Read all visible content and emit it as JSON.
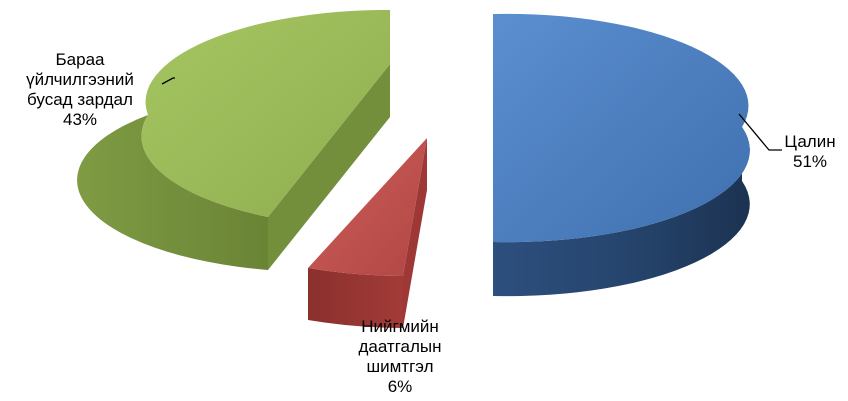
{
  "chart_data": {
    "type": "pie",
    "style": "3d-exploded",
    "slices": [
      {
        "name": "Цалин",
        "value": 51,
        "label": "51%",
        "color": "#4F81BD"
      },
      {
        "name": "Нийгмийн даатгалын шимтгэл",
        "value": 6,
        "label": "6%",
        "color": "#C0504D"
      },
      {
        "name": "Бараа үйлчилгээний бусад зардал",
        "value": 43,
        "label": "43%",
        "color": "#9BBB59"
      }
    ],
    "labels": {
      "salary": {
        "line1": "Цалин",
        "pct": "51%"
      },
      "insurance": {
        "line1": "Нийгмийн",
        "line2": "даатгалын",
        "line3": "шимтгэл",
        "pct": "6%"
      },
      "other": {
        "line1": "Бараа",
        "line2": "үйлчилгээний",
        "line3": "бусад зардал",
        "pct": "43%"
      }
    },
    "legend": "none"
  }
}
